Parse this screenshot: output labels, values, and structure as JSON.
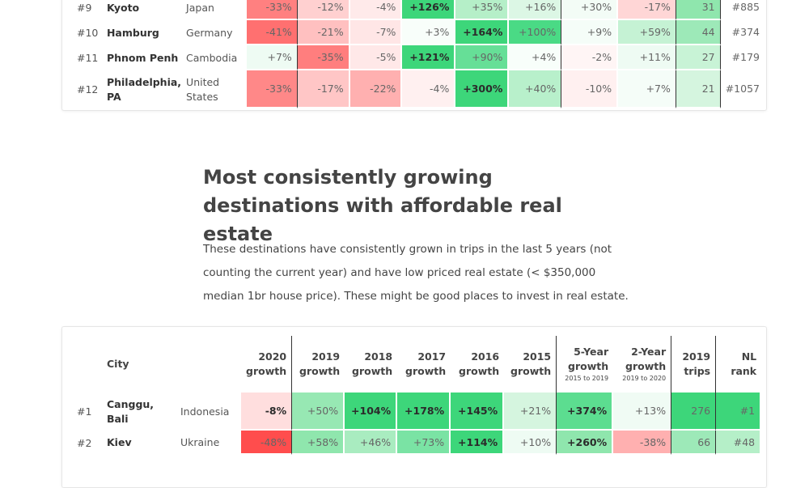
{
  "table1": {
    "rows": [
      {
        "rank": "#9",
        "city": "Kyoto",
        "country": "Japan",
        "cells": [
          [
            "-33%",
            "#ff8080",
            0
          ],
          [
            "-12%",
            "#ffd0d0",
            0
          ],
          [
            "-4%",
            "#ffeaea",
            0
          ],
          [
            "+126%",
            "#3dd67a",
            1
          ],
          [
            "+35%",
            "#b5efc8",
            0
          ],
          [
            "+16%",
            "#dcf7e5",
            0
          ],
          [
            "+30%",
            "#f3fcf6",
            0
          ],
          [
            "-17%",
            "#ffd6d6",
            0
          ],
          [
            "31",
            "#8fe6ad",
            0
          ],
          [
            "#885",
            "#ffffff",
            0
          ]
        ]
      },
      {
        "rank": "#10",
        "city": "Hamburg",
        "country": "Germany",
        "cells": [
          [
            "-41%",
            "#ff7070",
            0
          ],
          [
            "-21%",
            "#ffc0c0",
            0
          ],
          [
            "-7%",
            "#ffe6e6",
            0
          ],
          [
            "+3%",
            "#f8fefa",
            0
          ],
          [
            "+164%",
            "#3dd67a",
            1
          ],
          [
            "+100%",
            "#4ada85",
            0
          ],
          [
            "+9%",
            "#f5fdf8",
            0
          ],
          [
            "+59%",
            "#c5f2d4",
            0
          ],
          [
            "44",
            "#9de9b8",
            0
          ],
          [
            "#374",
            "#ffffff",
            0
          ]
        ]
      },
      {
        "rank": "#11",
        "city": "Phnom Penh",
        "country": "Cambodia",
        "cells": [
          [
            "+7%",
            "#eefbf3",
            0
          ],
          [
            "-35%",
            "#ff7e7e",
            0
          ],
          [
            "-5%",
            "#ffe8e8",
            0
          ],
          [
            "+121%",
            "#3dd67a",
            1
          ],
          [
            "+90%",
            "#66df97",
            0
          ],
          [
            "+4%",
            "#f8fefa",
            0
          ],
          [
            "-2%",
            "#fff5f5",
            0
          ],
          [
            "+11%",
            "#eefbf3",
            0
          ],
          [
            "27",
            "#c8f3d6",
            0
          ],
          [
            "#179",
            "#ffffff",
            0
          ]
        ]
      },
      {
        "rank": "#12",
        "city": "Philadelphia, PA",
        "country": "United States",
        "cells": [
          [
            "-33%",
            "#ff8888",
            0
          ],
          [
            "-17%",
            "#ffc6c6",
            0
          ],
          [
            "-22%",
            "#ffb0b0",
            0
          ],
          [
            "-4%",
            "#fff0f0",
            0
          ],
          [
            "+300%",
            "#3dd67a",
            1
          ],
          [
            "+40%",
            "#b8f0cb",
            0
          ],
          [
            "-10%",
            "#fff0f0",
            0
          ],
          [
            "+7%",
            "#f5fdf8",
            0
          ],
          [
            "21",
            "#d5f5df",
            0
          ],
          [
            "#1057",
            "#ffffff",
            0
          ]
        ]
      }
    ]
  },
  "section": {
    "title": "Most consistently growing destinations with affordable real estate",
    "description": "These destinations have consistently grown in trips in the last 5 years (not counting the current year) and have low priced real estate (< $350,000 median 1br house price). These might be good places to invest in real estate."
  },
  "table2": {
    "headers": [
      {
        "t": "City"
      },
      {
        "t": "2020",
        "u": "growth"
      },
      {
        "t": "2019",
        "u": "growth"
      },
      {
        "t": "2018",
        "u": "growth"
      },
      {
        "t": "2017",
        "u": "growth"
      },
      {
        "t": "2016",
        "u": "growth"
      },
      {
        "t": "2015",
        "u": "growth"
      },
      {
        "t": "5-Year",
        "u": "growth",
        "s": "2015 to 2019"
      },
      {
        "t": "2-Year",
        "u": "growth",
        "s": "2019 to 2020"
      },
      {
        "t": "2019",
        "u": "trips"
      },
      {
        "t": "NL",
        "u": "rank"
      }
    ],
    "rows": [
      {
        "rank": "#1",
        "city": "Canggu, Bali",
        "country": "Indonesia",
        "cells": [
          [
            "-8%",
            "#ffdede",
            1
          ],
          [
            "+50%",
            "#97e8b3",
            0
          ],
          [
            "+104%",
            "#3dd67a",
            1
          ],
          [
            "+178%",
            "#3dd67a",
            1
          ],
          [
            "+145%",
            "#3dd67a",
            1
          ],
          [
            "+21%",
            "#d5f5df",
            0
          ],
          [
            "+374%",
            "#5cdd90",
            1
          ],
          [
            "+13%",
            "#f0fbf4",
            0
          ],
          [
            "276",
            "#3dd67a",
            0
          ],
          [
            "#1",
            "#3dd67a",
            0
          ]
        ]
      },
      {
        "rank": "#2",
        "city": "Kiev",
        "country": "Ukraine",
        "cells": [
          [
            "-48%",
            "#ff4d4d",
            0
          ],
          [
            "+58%",
            "#8fe6ad",
            0
          ],
          [
            "+46%",
            "#a9ecc0",
            0
          ],
          [
            "+73%",
            "#7ae3a4",
            0
          ],
          [
            "+114%",
            "#3dd67a",
            1
          ],
          [
            "+10%",
            "#eefbf3",
            0
          ],
          [
            "+260%",
            "#8fe6ad",
            1
          ],
          [
            "-38%",
            "#ffb0b0",
            0
          ],
          [
            "66",
            "#9de9b8",
            0
          ],
          [
            "#48",
            "#b5efc8",
            0
          ]
        ]
      }
    ]
  }
}
